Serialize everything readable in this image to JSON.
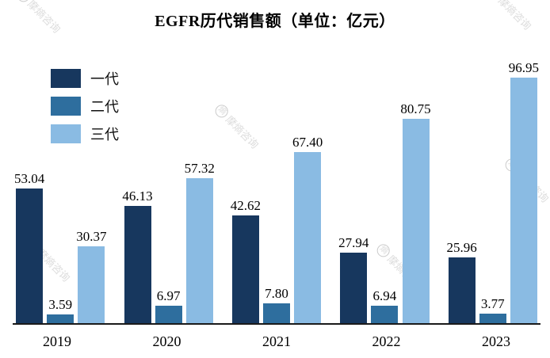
{
  "title": "EGFR历代销售额（单位：亿元）",
  "watermark_text": "摩熵咨询",
  "watermark_logo": "熵",
  "chart_data": {
    "type": "bar",
    "title": "EGFR历代销售额（单位：亿元）",
    "categories": [
      "2019",
      "2020",
      "2021",
      "2022",
      "2023"
    ],
    "series": [
      {
        "name": "一代",
        "color": "#17375E",
        "values": [
          53.04,
          46.13,
          42.62,
          27.94,
          25.96
        ]
      },
      {
        "name": "二代",
        "color": "#2E6E9E",
        "values": [
          3.59,
          6.97,
          7.8,
          6.94,
          3.77
        ]
      },
      {
        "name": "三代",
        "color": "#8ABBE3",
        "values": [
          30.37,
          57.32,
          67.4,
          80.75,
          96.95
        ]
      }
    ],
    "value_label_decimals": 2,
    "value_labels": true,
    "xlabel": "",
    "ylabel": "",
    "ylim": [
      0,
      100
    ],
    "grid": false,
    "legend_position": "top-left"
  }
}
